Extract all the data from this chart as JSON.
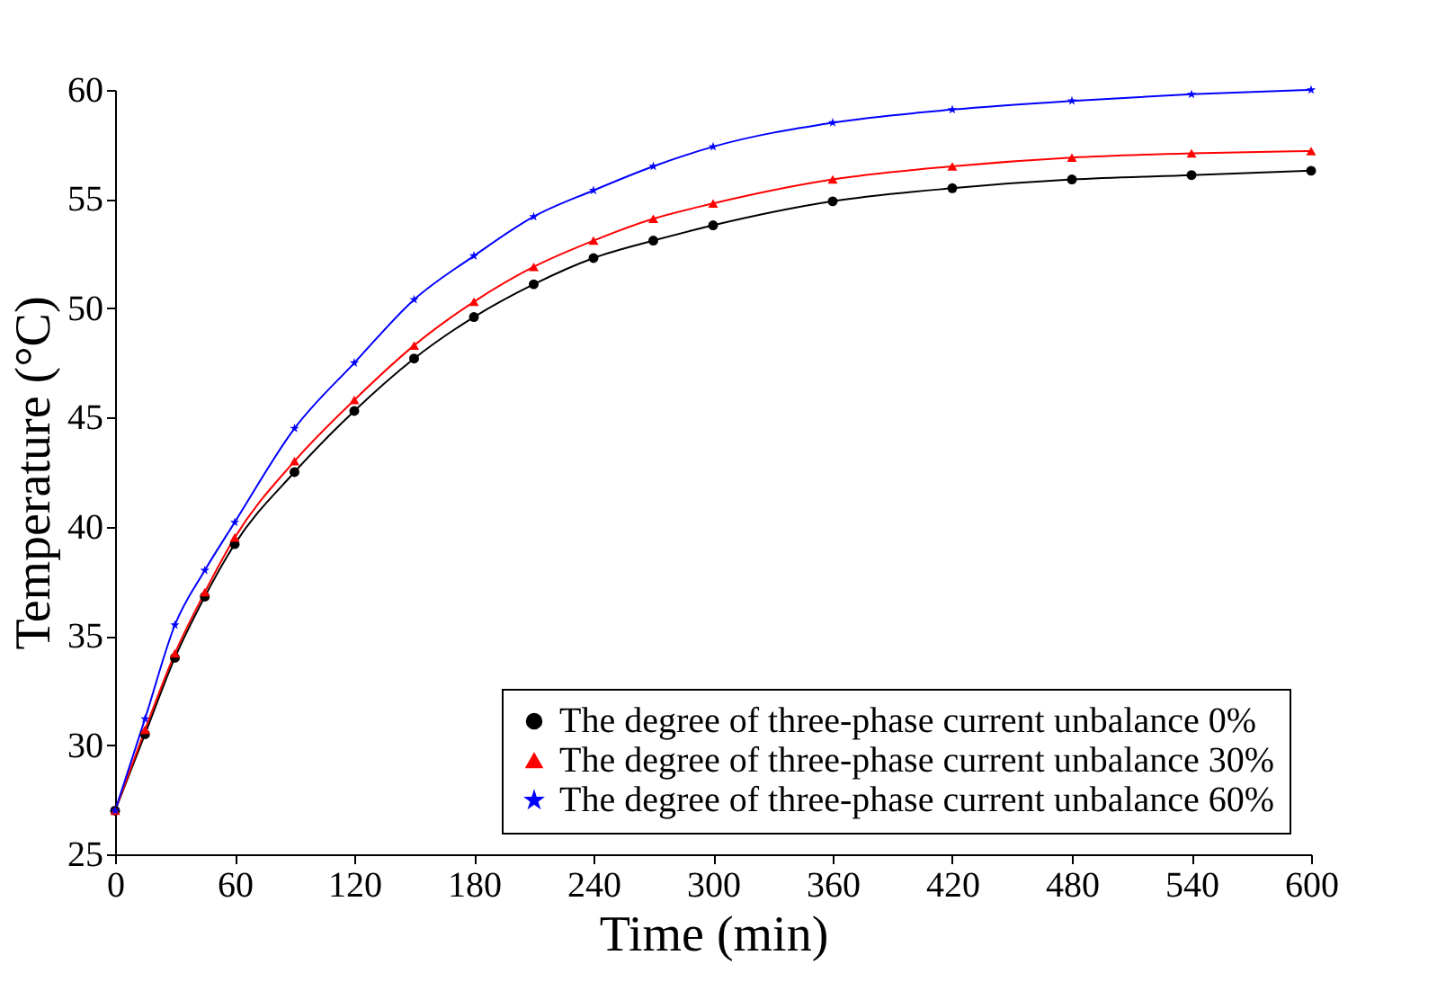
{
  "chart_data": {
    "type": "line",
    "xlabel": "Time (min)",
    "ylabel": "Temperature (°C)",
    "x": [
      0,
      15,
      30,
      45,
      60,
      90,
      120,
      150,
      180,
      210,
      240,
      270,
      300,
      360,
      420,
      480,
      540,
      600
    ],
    "series": [
      {
        "name": "The degree of three-phase current unbalance 0%",
        "color": "#000000",
        "marker": "circle",
        "values": [
          27,
          30.5,
          34.0,
          36.8,
          39.2,
          42.5,
          45.3,
          47.7,
          49.6,
          51.1,
          52.3,
          53.1,
          53.8,
          54.9,
          55.5,
          55.9,
          56.1,
          56.3
        ]
      },
      {
        "name": "The degree of three-phase current unbalance 30%",
        "color": "#ff0000",
        "marker": "triangle",
        "values": [
          27,
          30.7,
          34.2,
          37.0,
          39.5,
          43.0,
          45.8,
          48.3,
          50.3,
          51.9,
          53.1,
          54.1,
          54.8,
          55.9,
          56.5,
          56.9,
          57.1,
          57.2
        ]
      },
      {
        "name": "The degree of three-phase current unbalance 60%",
        "color": "#0000ff",
        "marker": "star",
        "values": [
          27,
          31.2,
          35.5,
          38.0,
          40.2,
          44.5,
          47.5,
          50.4,
          52.4,
          54.2,
          55.4,
          56.5,
          57.4,
          58.5,
          59.1,
          59.5,
          59.8,
          60.0
        ]
      }
    ],
    "xlim": [
      0,
      600
    ],
    "xticks": [
      0,
      60,
      120,
      180,
      240,
      300,
      360,
      420,
      480,
      540,
      600
    ],
    "ylim": [
      25,
      60
    ],
    "yticks": [
      25,
      30,
      35,
      40,
      45,
      50,
      55,
      60
    ],
    "grid": false,
    "legend": "bottom right",
    "line_style": "solid"
  }
}
